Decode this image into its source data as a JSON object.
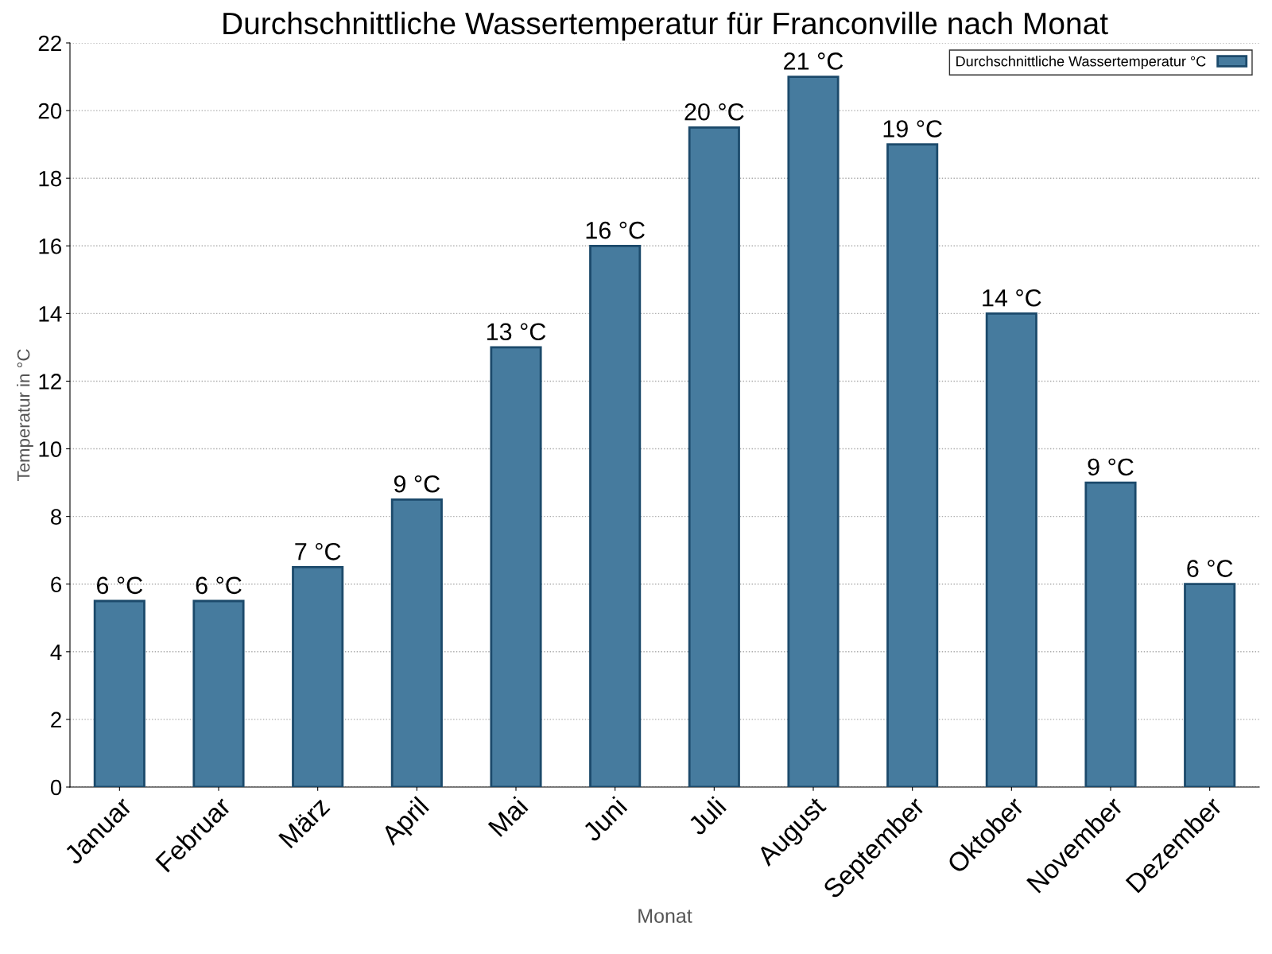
{
  "chart_data": {
    "type": "bar",
    "title": "Durchschnittliche Wassertemperatur für Franconville nach Monat",
    "xlabel": "Monat",
    "ylabel": "Temperatur in °C",
    "categories": [
      "Januar",
      "Februar",
      "März",
      "April",
      "Mai",
      "Juni",
      "Juli",
      "August",
      "September",
      "Oktober",
      "November",
      "Dezember"
    ],
    "series": [
      {
        "name": "Durchschnittliche Wassertemperatur °C",
        "color": "#467b9e",
        "values": [
          5.5,
          5.5,
          6.5,
          8.5,
          13,
          16,
          19.5,
          21,
          19,
          14,
          9,
          6
        ],
        "value_labels": [
          "6 °C",
          "6 °C",
          "7 °C",
          "9 °C",
          "13 °C",
          "16 °C",
          "20 °C",
          "21 °C",
          "19 °C",
          "14 °C",
          "9 °C",
          "6 °C"
        ]
      }
    ],
    "ylim": [
      0,
      22
    ],
    "yticks": [
      0,
      2,
      4,
      6,
      8,
      10,
      12,
      14,
      16,
      18,
      20,
      22
    ],
    "grid": "y",
    "legend": "top right"
  }
}
